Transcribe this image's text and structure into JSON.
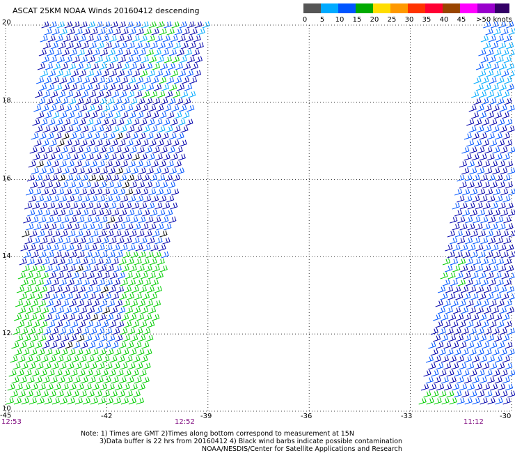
{
  "title": "ASCAT 25KM NOAA Winds 20160412 descending",
  "legend": {
    "labels": [
      "0",
      "5",
      "10",
      "15",
      "20",
      "25",
      "30",
      "35",
      "40",
      "45",
      ">50 knots"
    ],
    "colors": [
      "#555555",
      "#00aaff",
      "#0055ff",
      "#00aa00",
      "#ffdd00",
      "#ff9900",
      "#ff3300",
      "#ff0033",
      "#994400",
      "#ff00ff",
      "#9900cc",
      "#330066"
    ]
  },
  "map": {
    "lon_range": [
      -45,
      -30
    ],
    "lat_range": [
      10,
      20
    ],
    "x_ticks": [
      "-45",
      "-42",
      "-39",
      "-36",
      "-33",
      "-30"
    ],
    "y_ticks": [
      "20",
      "18",
      "16",
      "14",
      "12",
      "10"
    ],
    "grid": true,
    "gridline_style": "dotted"
  },
  "times": [
    "12:53",
    "12:52",
    "11:12"
  ],
  "notes": [
    "Note: 1) Times are GMT 2)Times along bottom correspond to measurement at 15N",
    "3)Data buffer is 22 hrs from 20160412 4) Black wind barbs indicate possible contamination",
    "NOAA/NESDIS/Center for Satellite Applications and Research"
  ],
  "barb_colors": {
    "dark_blue": "#0000aa",
    "blue": "#0055ff",
    "light_blue": "#00aaff",
    "green": "#00cc00",
    "black": "#000000"
  }
}
